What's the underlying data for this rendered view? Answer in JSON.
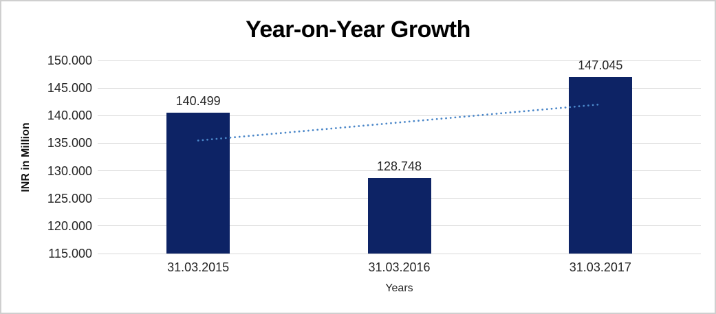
{
  "chart": {
    "colors": {
      "bar": "#0d2365",
      "trendline": "#4a86c8",
      "gridline": "#d9d9d9",
      "frame_border": "#cfcfcf",
      "label_text": "#262626",
      "title_text": "#000000"
    }
  },
  "chart_data": {
    "type": "bar",
    "title": "Year-on-Year Growth",
    "xlabel": "Years",
    "ylabel": "INR in Million",
    "categories": [
      "31.03.2015",
      "31.03.2016",
      "31.03.2017"
    ],
    "values": [
      140.499,
      128.748,
      147.045
    ],
    "data_labels": [
      "140.499",
      "128.748",
      "147.045"
    ],
    "ylim": [
      115,
      150
    ],
    "ytick_labels": [
      "150.000",
      "145.000",
      "140.000",
      "135.000",
      "130.000",
      "125.000",
      "120.000",
      "115.000"
    ],
    "grid": "horizontal",
    "legend": "none",
    "trendline": {
      "present": true,
      "type": "linear",
      "style": "dotted"
    }
  }
}
